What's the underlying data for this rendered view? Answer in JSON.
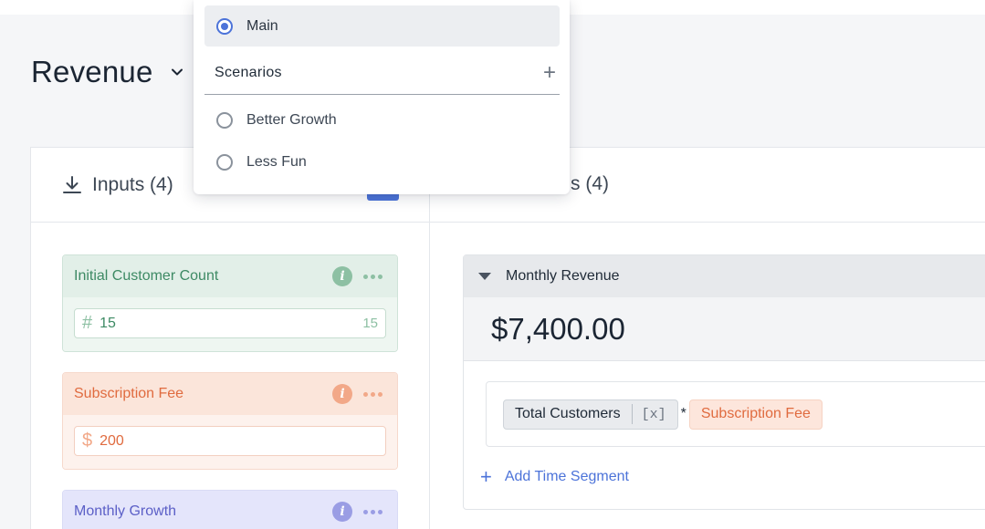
{
  "page": {
    "title": "Revenue"
  },
  "inputs": {
    "label": "Inputs (4)",
    "items": [
      {
        "name": "Initial Customer Count",
        "symbol": "#",
        "value": "15",
        "preview": "15",
        "color": "#3d8a64"
      },
      {
        "name": "Subscription Fee",
        "symbol": "$",
        "value": "200",
        "color": "#e06b3f"
      },
      {
        "name": "Monthly Growth",
        "color": "#5b5fc7"
      }
    ]
  },
  "outputs": {
    "label": "s (4)",
    "metric": {
      "name": "Monthly Revenue",
      "value": "$7,400.00",
      "formula": {
        "term1": "Total Customers",
        "term1_tag": "[x]",
        "operator": "*",
        "term2": "Subscription Fee"
      },
      "add_segment": "Add Time Segment"
    }
  },
  "scenario_menu": {
    "main": "Main",
    "section": "Scenarios",
    "items": [
      "Better Growth",
      "Less Fun"
    ]
  },
  "colors": {
    "accent": "#4c73d9",
    "green": "#3d8a64",
    "orange": "#e06b3f",
    "purple": "#5b5fc7"
  }
}
